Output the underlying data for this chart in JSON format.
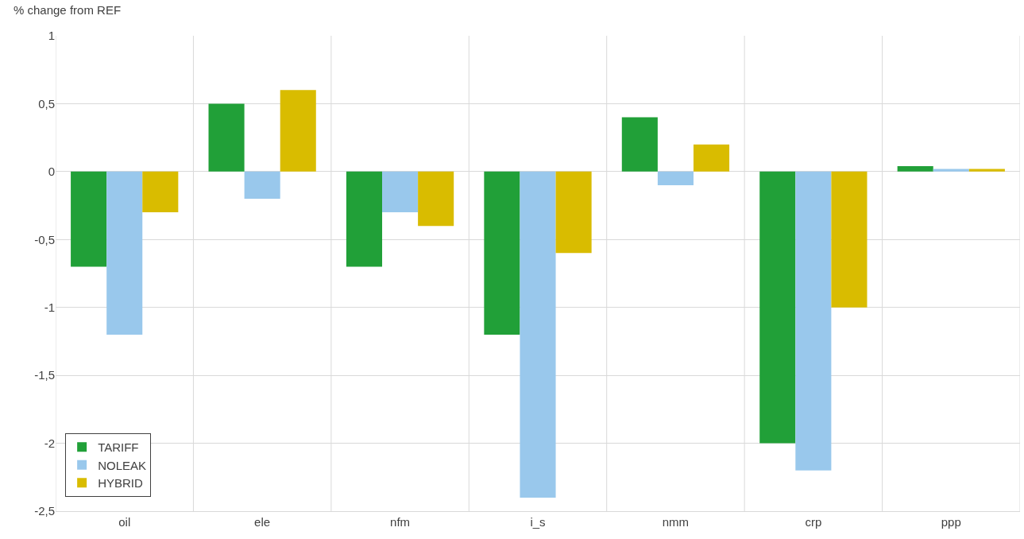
{
  "chart_data": {
    "type": "bar",
    "ylabel": "% change from REF",
    "categories": [
      "oil",
      "ele",
      "nfm",
      "i_s",
      "nmm",
      "crp",
      "ppp"
    ],
    "series": [
      {
        "name": "TARIFF",
        "color": "#21a038",
        "values": [
          -0.7,
          0.5,
          -0.7,
          -1.2,
          0.4,
          -2.0,
          0.04
        ]
      },
      {
        "name": "NOLEAK",
        "color": "#99c8ec",
        "values": [
          -1.2,
          -0.2,
          -0.3,
          -2.4,
          -0.1,
          -2.2,
          0.02
        ]
      },
      {
        "name": "HYBRID",
        "color": "#d9bc00",
        "values": [
          -0.3,
          0.6,
          -0.4,
          -0.6,
          0.2,
          -1.0,
          0.02
        ]
      }
    ],
    "ylim": [
      -2.5,
      1
    ],
    "yticks": [
      {
        "value": -2.5,
        "label": "-2,5"
      },
      -2,
      {
        "value": -1.5,
        "label": "-1,5"
      },
      -1,
      {
        "value": -0.5,
        "label": "-0,5"
      },
      0,
      {
        "value": 0.5,
        "label": "0,5"
      },
      1
    ],
    "grid": true,
    "legend": "bottom left"
  }
}
